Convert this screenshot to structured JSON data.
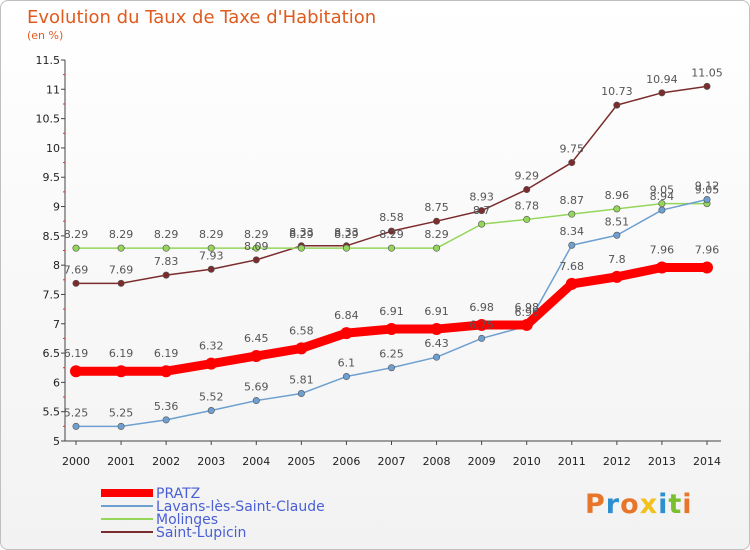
{
  "title": "Evolution du Taux de Taxe d'Habitation",
  "subtitle": "(en %)",
  "logo": {
    "text": "Proxiti",
    "colors": [
      "#e8762a",
      "#2d8fcf",
      "#e8762a",
      "#f2c21b",
      "#2d8fcf",
      "#7abf2e",
      "#e8762a"
    ]
  },
  "chart_data": {
    "type": "line",
    "x": [
      "2000",
      "2001",
      "2002",
      "2003",
      "2004",
      "2005",
      "2006",
      "2007",
      "2008",
      "2009",
      "2010",
      "2011",
      "2012",
      "2013",
      "2014"
    ],
    "ylim": [
      5,
      11.5
    ],
    "yticks": [
      "5",
      "5.5",
      "6",
      "6.5",
      "7",
      "7.5",
      "8",
      "8.5",
      "9",
      "9.5",
      "10",
      "10.5",
      "11",
      "11.5"
    ],
    "grid": false,
    "legend": "bottom-left",
    "series": [
      {
        "name": "PRATZ",
        "color": "#ff0000",
        "values": [
          6.19,
          6.19,
          6.19,
          6.32,
          6.45,
          6.58,
          6.84,
          6.91,
          6.91,
          6.98,
          6.98,
          7.68,
          7.8,
          7.96,
          7.96
        ]
      },
      {
        "name": "Lavans-lès-Saint-Claude",
        "color": "#6d9fd0",
        "values": [
          5.25,
          5.25,
          5.36,
          5.52,
          5.69,
          5.81,
          6.1,
          6.25,
          6.43,
          6.75,
          6.96,
          8.34,
          8.51,
          8.94,
          9.12
        ]
      },
      {
        "name": "Molinges",
        "color": "#94d65a",
        "values": [
          8.29,
          8.29,
          8.29,
          8.29,
          8.29,
          8.29,
          8.29,
          8.29,
          8.29,
          8.7,
          8.78,
          8.87,
          8.96,
          9.05,
          9.05
        ]
      },
      {
        "name": "Saint-Lupicin",
        "color": "#7b2c2c",
        "values": [
          7.69,
          7.69,
          7.83,
          7.93,
          8.09,
          8.33,
          8.33,
          8.58,
          8.75,
          8.93,
          9.29,
          9.75,
          10.73,
          10.94,
          11.05
        ]
      }
    ],
    "labels": [
      [
        "6.19",
        "6.19",
        "6.19",
        "6.32",
        "6.45",
        "6.58",
        "6.84",
        "6.91",
        "6.91",
        "6.98",
        "6.98",
        "7.68",
        "7.8",
        "7.96",
        "7.96"
      ],
      [
        "5.25",
        "5.25",
        "5.36",
        "5.52",
        "5.69",
        "5.81",
        "6.1",
        "6.25",
        "6.43",
        "6.75",
        "6.96",
        "8.34",
        "8.51",
        "8.94",
        "9.12"
      ],
      [
        "8.29",
        "8.29",
        "8.29",
        "8.29",
        "8.29",
        "8.29",
        "8.29",
        "8.29",
        "8.29",
        "8.7",
        "8.78",
        "8.87",
        "8.96",
        "9.05",
        "9.05"
      ],
      [
        "7.69",
        "7.69",
        "7.83",
        "7.93",
        "8.09",
        "8.33",
        "8.33",
        "8.58",
        "8.75",
        "8.93",
        "9.29",
        "9.75",
        "10.73",
        "10.94",
        "11.05"
      ]
    ]
  }
}
